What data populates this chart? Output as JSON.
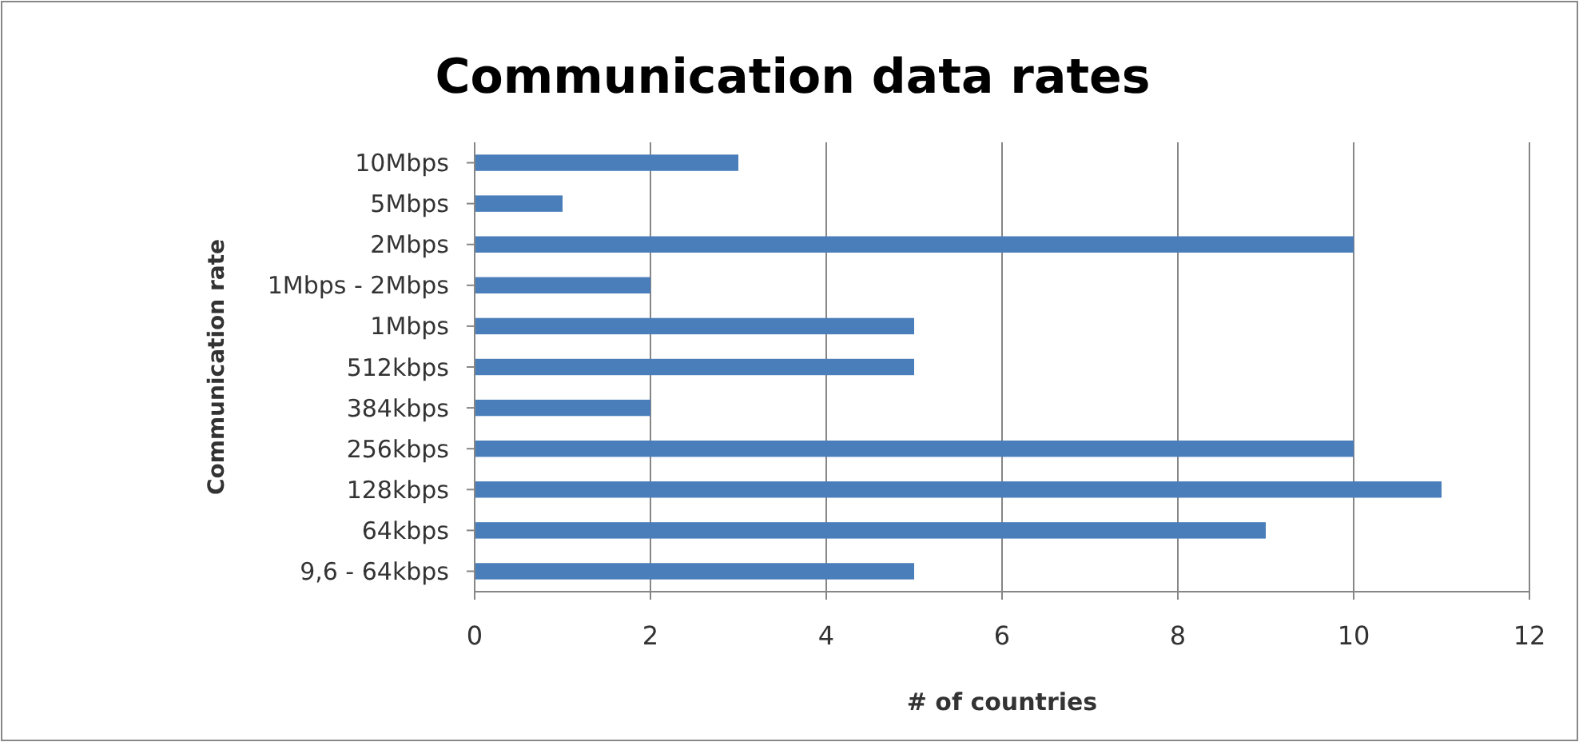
{
  "chart_data": {
    "type": "bar",
    "orientation": "horizontal",
    "title": "Communication data rates",
    "xlabel": "# of countries",
    "ylabel": "Communication rate",
    "categories": [
      "10Mbps",
      "5Mbps",
      "2Mbps",
      "1Mbps - 2Mbps",
      "1Mbps",
      "512kbps",
      "384kbps",
      "256kbps",
      "128kbps",
      "64kbps",
      "9,6 - 64kbps"
    ],
    "values": [
      3,
      1,
      10,
      2,
      5,
      5,
      2,
      10,
      11,
      9,
      5
    ],
    "color": "#4a7ebb",
    "xlim": [
      0,
      12
    ],
    "xticks": [
      0,
      2,
      4,
      6,
      8,
      10,
      12
    ],
    "grid": "x"
  }
}
